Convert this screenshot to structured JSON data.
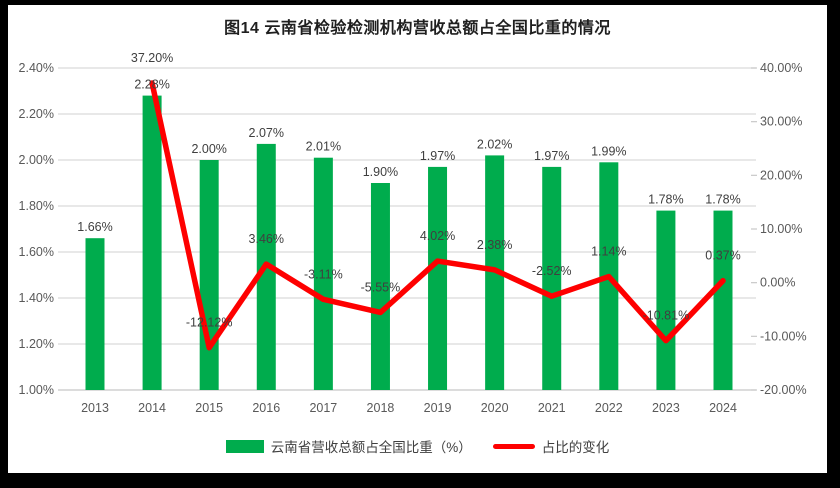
{
  "chart_data": {
    "type": "bar+line combo",
    "title": "图14 云南省检验检测机构营收总额占全国比重的情况",
    "categories": [
      "2013",
      "2014",
      "2015",
      "2016",
      "2017",
      "2018",
      "2019",
      "2020",
      "2021",
      "2022",
      "2023",
      "2024"
    ],
    "series": [
      {
        "name": "云南省营收总额占全国比重（%）",
        "type": "bar",
        "axis": "left",
        "color": "#00AC4D",
        "values": [
          1.66,
          2.28,
          2.0,
          2.07,
          2.01,
          1.9,
          1.97,
          2.02,
          1.97,
          1.99,
          1.78,
          1.78
        ],
        "labels": [
          "1.66%",
          "2.28%",
          "2.00%",
          "2.07%",
          "2.01%",
          "1.90%",
          "1.97%",
          "2.02%",
          "1.97%",
          "1.99%",
          "1.78%",
          "1.78%"
        ]
      },
      {
        "name": "占比的变化",
        "type": "line",
        "axis": "right",
        "color": "#FE0000",
        "values": [
          null,
          37.2,
          -12.12,
          3.46,
          -3.11,
          -5.55,
          4.02,
          2.38,
          -2.52,
          1.14,
          -10.81,
          0.37
        ],
        "labels": [
          null,
          "37.20%",
          "-12.12%",
          "3.46%",
          "-3.11%",
          "-5.55%",
          "4.02%",
          "2.38%",
          "-2.52%",
          "1.14%",
          "-10.81%",
          "0.37%"
        ]
      }
    ],
    "left_axis": {
      "min": 1.0,
      "max": 2.4,
      "step": 0.2,
      "ticks": [
        "2.40%",
        "2.20%",
        "2.00%",
        "1.80%",
        "1.60%",
        "1.40%",
        "1.20%",
        "1.00%"
      ]
    },
    "right_axis": {
      "min": -20,
      "max": 40,
      "step": 10,
      "ticks": [
        "40.00%",
        "30.00%",
        "20.00%",
        "10.00%",
        "0.00%",
        "-10.00%",
        "-20.00%"
      ]
    },
    "grid": true,
    "legend_position": "bottom",
    "colors": {
      "grid_line": "#DADADA",
      "baseline": "#C8C8C8",
      "axis_text": "#595959",
      "data_label_text": "#3F3F3F",
      "title_text": "#1f1f1f"
    }
  }
}
